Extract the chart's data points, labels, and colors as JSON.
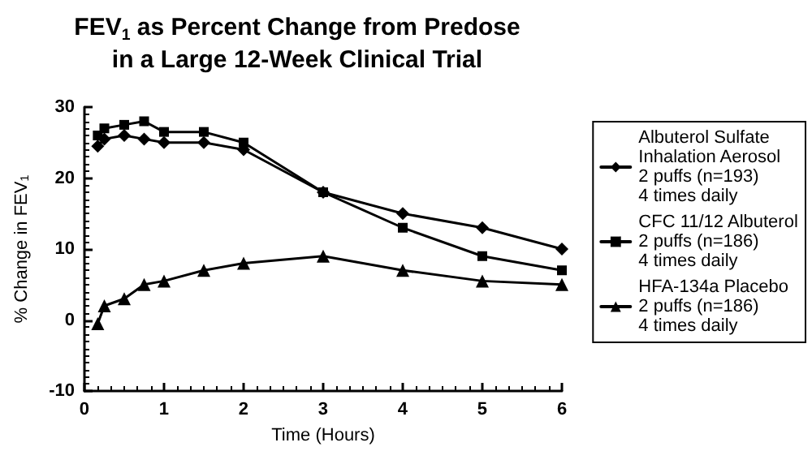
{
  "chart_data": {
    "type": "line",
    "title": "FEV$_{1}$ as Percent Change from Predose\nin a Large 12-Week Clinical Trial",
    "xlabel": "Time (Hours)",
    "ylabel": "% Change in FEV$_{1}$",
    "x": [
      0.167,
      0.25,
      0.5,
      0.75,
      1,
      1.5,
      2,
      3,
      4,
      5,
      6
    ],
    "series": [
      {
        "name": "Albuterol Sulfate\nInhalation Aerosol\n2 puffs (n=193)\n4 times daily",
        "color": "#000000",
        "marker": "diamond",
        "values": [
          24.5,
          25.5,
          26,
          25.5,
          25,
          25,
          24,
          18,
          15,
          13,
          10
        ]
      },
      {
        "name": "CFC 11/12 Albuterol\n2 puffs (n=186)\n4 times daily",
        "color": "#000000",
        "marker": "square",
        "values": [
          26,
          27,
          27.5,
          28,
          26.5,
          26.5,
          25,
          18,
          13,
          9,
          7
        ]
      },
      {
        "name": "HFA-134a Placebo\n2 puffs (n=186)\n4 times daily",
        "color": "#000000",
        "marker": "triangle",
        "values": [
          -0.5,
          2,
          3,
          5,
          5.5,
          7,
          8,
          9,
          7,
          5.5,
          5
        ]
      }
    ],
    "xlim": [
      0,
      6
    ],
    "xticks": [
      0,
      1,
      2,
      3,
      4,
      5,
      6
    ],
    "ylim": [
      -10,
      30
    ],
    "yticks": [
      -10,
      0,
      10,
      20,
      30
    ],
    "grid": false,
    "legend": "right",
    "line_style": "solid"
  }
}
